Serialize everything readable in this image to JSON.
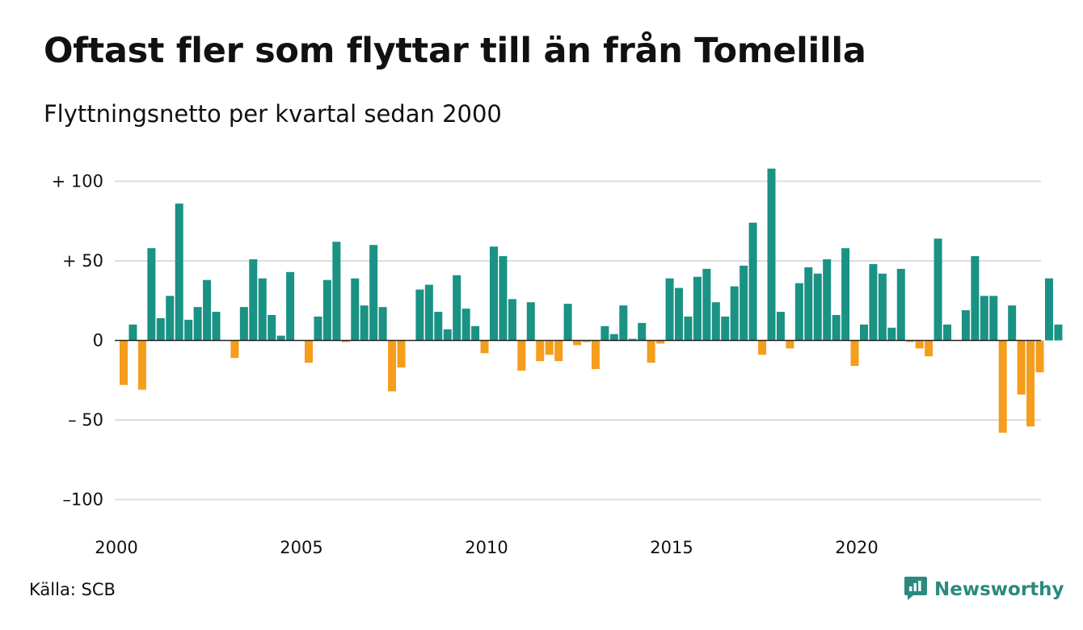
{
  "title": "Oftast fler som flyttar till än från Tomelilla",
  "subtitle": "Flyttningsnetto per kvartal sedan 2000",
  "source": "Källa: SCB",
  "brand": {
    "name": "Newsworthy",
    "icon": "newsworthy-logo-icon"
  },
  "colors": {
    "positive": "#1a9284",
    "negative": "#f59d1c",
    "grid": "#dddddd",
    "zero_line": "#222222"
  },
  "chart_data": {
    "type": "bar",
    "title": "Oftast fler som flyttar till än från Tomelilla",
    "subtitle": "Flyttningsnetto per kvartal sedan 2000",
    "xlabel": "",
    "ylabel": "",
    "ylim": [
      -100,
      108
    ],
    "grid": true,
    "y_ticks": [
      {
        "value": 100,
        "label": "+ 100"
      },
      {
        "value": 50,
        "label": "+  50"
      },
      {
        "value": 0,
        "label": "0"
      },
      {
        "value": -50,
        "label": "– 50"
      },
      {
        "value": -100,
        "label": "–100"
      }
    ],
    "x_ticks": [
      "2000",
      "2005",
      "2010",
      "2015",
      "2020"
    ],
    "start_year": 2000,
    "quarters_per_year": 4,
    "values": [
      -28,
      10,
      -31,
      58,
      14,
      28,
      86,
      13,
      21,
      38,
      18,
      0,
      -11,
      21,
      51,
      39,
      16,
      3,
      43,
      0,
      -14,
      15,
      38,
      62,
      -1,
      39,
      22,
      60,
      21,
      -32,
      -17,
      0,
      32,
      35,
      18,
      7,
      41,
      20,
      9,
      -8,
      59,
      53,
      26,
      -19,
      24,
      -13,
      -9,
      -13,
      23,
      -3,
      -1,
      -18,
      9,
      4,
      22,
      1,
      11,
      -14,
      -2,
      39,
      33,
      15,
      40,
      45,
      24,
      15,
      34,
      47,
      74,
      -9,
      108,
      18,
      -5,
      36,
      46,
      42,
      51,
      16,
      58,
      -16,
      10,
      48,
      42,
      8,
      45,
      -1,
      -5,
      -10,
      64,
      10,
      0,
      19,
      53,
      28,
      28,
      -58,
      22,
      -34,
      -54,
      -20,
      39,
      10
    ]
  }
}
